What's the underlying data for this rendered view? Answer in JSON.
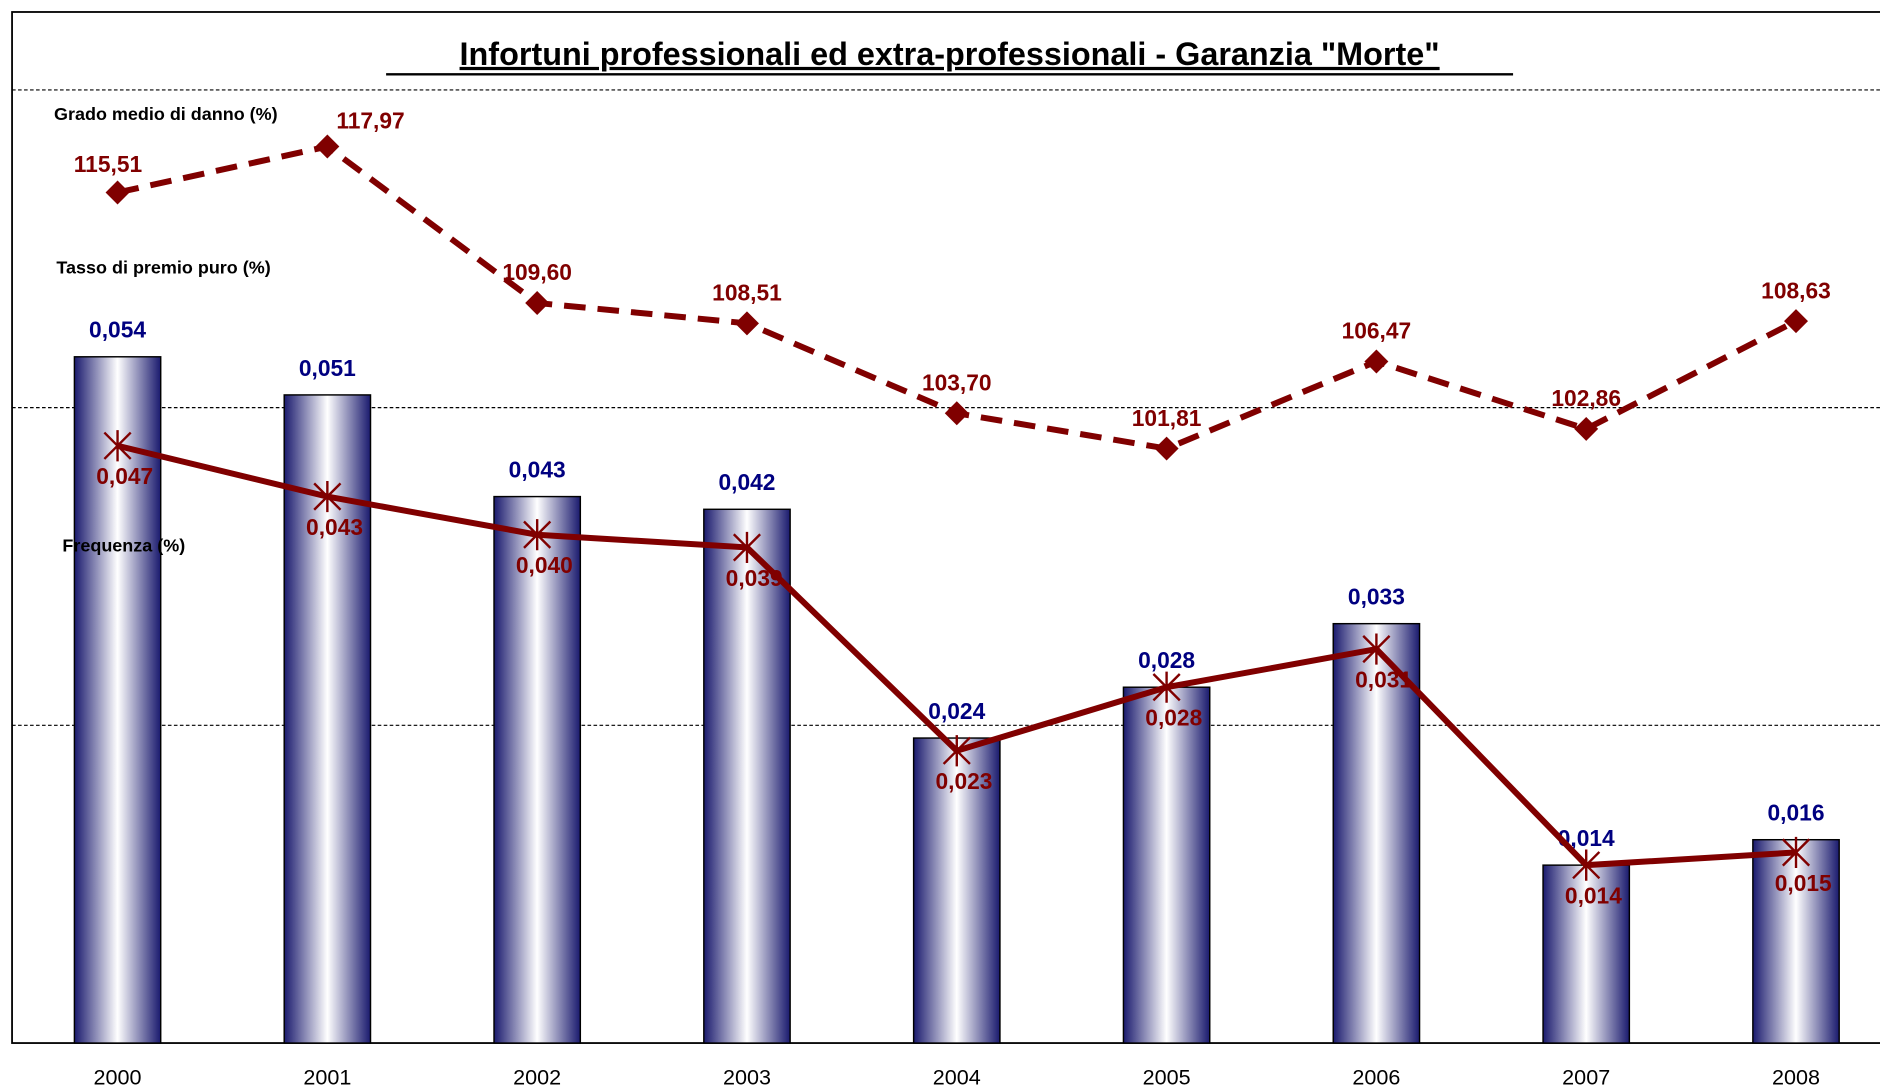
{
  "chart_data": {
    "type": "bar",
    "title": "Infortuni professionali ed extra-professionali - Garanzia \"Morte\"",
    "categories": [
      "2000",
      "2001",
      "2002",
      "2003",
      "2004",
      "2005",
      "2006",
      "2007",
      "2008"
    ],
    "ylim": [
      0,
      0.075
    ],
    "yticks": [
      0,
      0.025,
      0.05,
      0.075
    ],
    "y2lim": [
      70,
      121
    ],
    "grid": true,
    "series": [
      {
        "name": "Tasso di premio puro (%)",
        "type": "bar",
        "color": "#000080",
        "values": [
          0.054,
          0.051,
          0.043,
          0.042,
          0.024,
          0.028,
          0.033,
          0.014,
          0.016
        ],
        "value_labels": [
          "0,054",
          "0,051",
          "0,043",
          "0,042",
          "0,024",
          "0,028",
          "0,033",
          "0,014",
          "0,016"
        ]
      },
      {
        "name": "Frequenza (%)",
        "type": "line",
        "color": "#800000",
        "linestyle": "solid",
        "values": [
          0.047,
          0.043,
          0.04,
          0.039,
          0.023,
          0.028,
          0.031,
          0.014,
          0.015
        ],
        "value_labels": [
          "0,047",
          "0,043",
          "0,040",
          "0,039",
          "0,023",
          "0,028",
          "0,031",
          "0,014",
          "0,015"
        ]
      },
      {
        "name": "Grado medio di danno (%)",
        "type": "line",
        "axis": "y2",
        "color": "#800000",
        "linestyle": "dashed",
        "values": [
          115.51,
          117.97,
          109.6,
          108.51,
          103.7,
          101.81,
          106.47,
          102.86,
          108.63
        ],
        "value_labels": [
          "115,51",
          "117,97",
          "109,60",
          "108,51",
          "103,70",
          "101,81",
          "106,47",
          "102,86",
          "108,63"
        ]
      }
    ]
  }
}
